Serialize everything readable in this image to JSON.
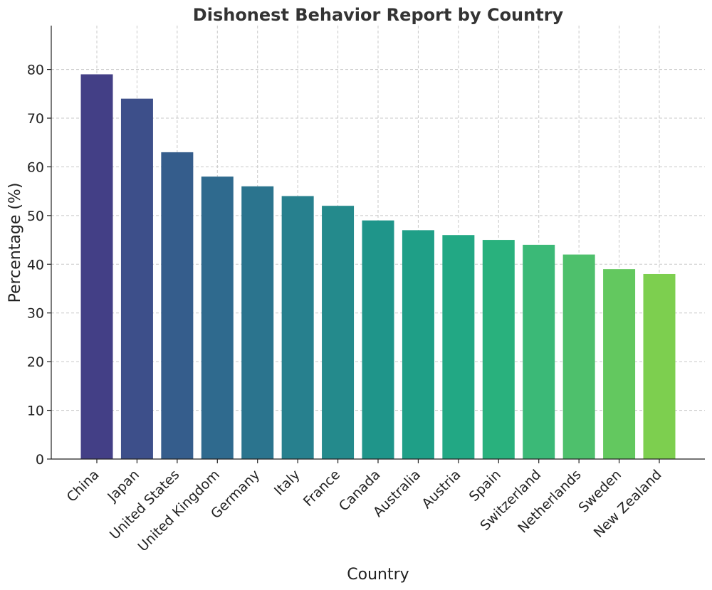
{
  "chart_data": {
    "type": "bar",
    "title": "Dishonest Behavior Report by Country",
    "xlabel": "Country",
    "ylabel": "Percentage (%)",
    "ylim": [
      0,
      89
    ],
    "yticks": [
      0,
      10,
      20,
      30,
      40,
      50,
      60,
      70,
      80
    ],
    "grid": true,
    "categories": [
      "China",
      "Japan",
      "United States",
      "United Kingdom",
      "Germany",
      "Italy",
      "France",
      "Canada",
      "Australia",
      "Austria",
      "Spain",
      "Switzerland",
      "Netherlands",
      "Sweden",
      "New Zealand"
    ],
    "values": [
      79,
      74,
      63,
      58,
      56,
      54,
      52,
      49,
      47,
      46,
      45,
      44,
      42,
      39,
      38
    ],
    "colors": [
      "#433f86",
      "#3d4f8a",
      "#355d8c",
      "#2f6a8e",
      "#2b748e",
      "#27808e",
      "#248a8c",
      "#1f958a",
      "#1f9f87",
      "#22a884",
      "#29b17d",
      "#3bb977",
      "#4ec06c",
      "#63c85f",
      "#7dcf4f"
    ]
  }
}
